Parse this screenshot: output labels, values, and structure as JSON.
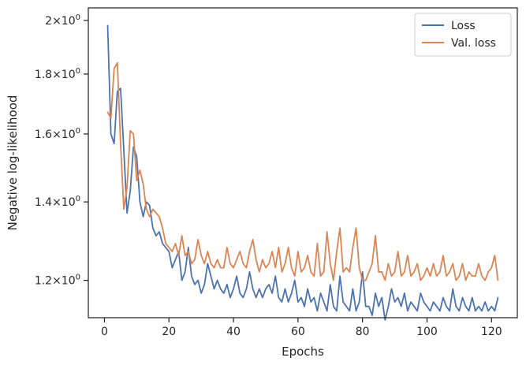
{
  "chart_data": {
    "type": "line",
    "xlabel": "Epochs",
    "ylabel": "Negative log-likelihood",
    "yscale": "log",
    "xlim": [
      -5,
      128
    ],
    "ylim": [
      1.115,
      2.05
    ],
    "xticks": [
      0,
      20,
      40,
      60,
      80,
      100,
      120
    ],
    "xtick_labels": [
      "0",
      "20",
      "40",
      "60",
      "80",
      "100",
      "120"
    ],
    "yticks": [
      1.2,
      1.4,
      1.6,
      1.8,
      2.0
    ],
    "ytick_labels": [
      {
        "mantissa": "1.2",
        "exp": "0"
      },
      {
        "mantissa": "1.4",
        "exp": "0"
      },
      {
        "mantissa": "1.6",
        "exp": "0"
      },
      {
        "mantissa": "1.8",
        "exp": "0"
      },
      {
        "mantissa": "2",
        "exp": "0"
      }
    ],
    "legend_position": "top-right",
    "series": [
      {
        "name": "Loss",
        "color": "#4c72b0",
        "x": [
          1,
          2,
          3,
          4,
          5,
          6,
          7,
          8,
          9,
          10,
          11,
          12,
          13,
          14,
          15,
          16,
          17,
          18,
          19,
          20,
          21,
          22,
          23,
          24,
          25,
          26,
          27,
          28,
          29,
          30,
          31,
          32,
          33,
          34,
          35,
          36,
          37,
          38,
          39,
          40,
          41,
          42,
          43,
          44,
          45,
          46,
          47,
          48,
          49,
          50,
          51,
          52,
          53,
          54,
          55,
          56,
          57,
          58,
          59,
          60,
          61,
          62,
          63,
          64,
          65,
          66,
          67,
          68,
          69,
          70,
          71,
          72,
          73,
          74,
          75,
          76,
          77,
          78,
          79,
          80,
          81,
          82,
          83,
          84,
          85,
          86,
          87,
          88,
          89,
          90,
          91,
          92,
          93,
          94,
          95,
          96,
          97,
          98,
          99,
          100,
          101,
          102,
          103,
          104,
          105,
          106,
          107,
          108,
          109,
          110,
          111,
          112,
          113,
          114,
          115,
          116,
          117,
          118,
          119,
          120,
          121,
          122
        ],
        "y": [
          1.98,
          1.6,
          1.57,
          1.74,
          1.75,
          1.55,
          1.37,
          1.43,
          1.56,
          1.53,
          1.4,
          1.36,
          1.4,
          1.39,
          1.33,
          1.31,
          1.32,
          1.29,
          1.28,
          1.27,
          1.23,
          1.25,
          1.27,
          1.2,
          1.22,
          1.28,
          1.21,
          1.19,
          1.2,
          1.17,
          1.19,
          1.24,
          1.21,
          1.18,
          1.2,
          1.18,
          1.17,
          1.19,
          1.16,
          1.18,
          1.21,
          1.17,
          1.16,
          1.18,
          1.22,
          1.18,
          1.16,
          1.18,
          1.16,
          1.18,
          1.19,
          1.17,
          1.21,
          1.16,
          1.15,
          1.18,
          1.15,
          1.17,
          1.2,
          1.15,
          1.16,
          1.14,
          1.18,
          1.15,
          1.16,
          1.13,
          1.17,
          1.15,
          1.13,
          1.19,
          1.14,
          1.13,
          1.21,
          1.15,
          1.14,
          1.13,
          1.18,
          1.13,
          1.15,
          1.22,
          1.14,
          1.14,
          1.12,
          1.17,
          1.14,
          1.16,
          1.11,
          1.14,
          1.18,
          1.15,
          1.16,
          1.14,
          1.17,
          1.13,
          1.15,
          1.14,
          1.13,
          1.17,
          1.15,
          1.14,
          1.13,
          1.15,
          1.14,
          1.13,
          1.16,
          1.14,
          1.13,
          1.18,
          1.14,
          1.13,
          1.16,
          1.14,
          1.13,
          1.16,
          1.13,
          1.14,
          1.13,
          1.15,
          1.13,
          1.14,
          1.13,
          1.16
        ]
      },
      {
        "name": "Val. loss",
        "color": "#dd8452",
        "x": [
          1,
          2,
          3,
          4,
          5,
          6,
          7,
          8,
          9,
          10,
          11,
          12,
          13,
          14,
          15,
          16,
          17,
          18,
          19,
          20,
          21,
          22,
          23,
          24,
          25,
          26,
          27,
          28,
          29,
          30,
          31,
          32,
          33,
          34,
          35,
          36,
          37,
          38,
          39,
          40,
          41,
          42,
          43,
          44,
          45,
          46,
          47,
          48,
          49,
          50,
          51,
          52,
          53,
          54,
          55,
          56,
          57,
          58,
          59,
          60,
          61,
          62,
          63,
          64,
          65,
          66,
          67,
          68,
          69,
          70,
          71,
          72,
          73,
          74,
          75,
          76,
          77,
          78,
          79,
          80,
          81,
          82,
          83,
          84,
          85,
          86,
          87,
          88,
          89,
          90,
          91,
          92,
          93,
          94,
          95,
          96,
          97,
          98,
          99,
          100,
          101,
          102,
          103,
          104,
          105,
          106,
          107,
          108,
          109,
          110,
          111,
          112,
          113,
          114,
          115,
          116,
          117,
          118,
          119,
          120,
          121,
          122
        ],
        "y": [
          1.67,
          1.65,
          1.82,
          1.84,
          1.57,
          1.38,
          1.44,
          1.61,
          1.6,
          1.46,
          1.49,
          1.45,
          1.38,
          1.36,
          1.38,
          1.37,
          1.36,
          1.33,
          1.29,
          1.28,
          1.27,
          1.29,
          1.26,
          1.31,
          1.26,
          1.27,
          1.24,
          1.25,
          1.3,
          1.26,
          1.24,
          1.27,
          1.24,
          1.23,
          1.25,
          1.23,
          1.23,
          1.28,
          1.24,
          1.23,
          1.25,
          1.27,
          1.24,
          1.23,
          1.27,
          1.3,
          1.25,
          1.22,
          1.25,
          1.23,
          1.24,
          1.27,
          1.23,
          1.28,
          1.22,
          1.24,
          1.28,
          1.23,
          1.21,
          1.27,
          1.22,
          1.23,
          1.26,
          1.22,
          1.21,
          1.29,
          1.21,
          1.22,
          1.32,
          1.24,
          1.2,
          1.27,
          1.33,
          1.22,
          1.23,
          1.22,
          1.28,
          1.33,
          1.23,
          1.2,
          1.2,
          1.22,
          1.24,
          1.31,
          1.22,
          1.22,
          1.2,
          1.24,
          1.21,
          1.22,
          1.27,
          1.21,
          1.22,
          1.26,
          1.21,
          1.22,
          1.24,
          1.2,
          1.21,
          1.23,
          1.21,
          1.24,
          1.21,
          1.22,
          1.26,
          1.21,
          1.22,
          1.24,
          1.2,
          1.21,
          1.24,
          1.2,
          1.22,
          1.21,
          1.21,
          1.24,
          1.21,
          1.2,
          1.22,
          1.23,
          1.26,
          1.2
        ]
      }
    ]
  }
}
